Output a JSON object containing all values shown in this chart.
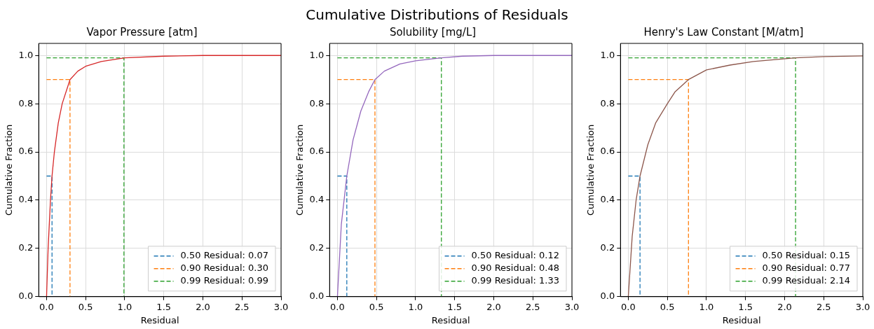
{
  "chart_data": [
    {
      "type": "line",
      "title": "Vapor Pressure [atm]",
      "xlabel": "Residual",
      "ylabel": "Cumulative Fraction",
      "annotations": [
        "Cumulative Distributions of Residuals"
      ],
      "xlim": [
        -0.1,
        3
      ],
      "ylim": [
        0,
        1.05
      ],
      "xticks": [
        {
          "value": 0,
          "label": "0.0"
        },
        {
          "value": 0.5,
          "label": "0.5"
        },
        {
          "value": 1,
          "label": "1.0"
        },
        {
          "value": 1.5,
          "label": "1.5"
        },
        {
          "value": 2,
          "label": "2.0"
        },
        {
          "value": 2.5,
          "label": "2.5"
        },
        {
          "value": 3,
          "label": "3.0"
        }
      ],
      "yticks": [
        {
          "value": 0,
          "label": "0.0"
        },
        {
          "value": 0.2,
          "label": "0.2"
        },
        {
          "value": 0.4,
          "label": "0.4"
        },
        {
          "value": 0.6,
          "label": "0.6"
        },
        {
          "value": 0.8,
          "label": "0.8"
        },
        {
          "value": 1,
          "label": "1.0"
        }
      ],
      "grid": true,
      "legend": "bottom right",
      "marker": "none",
      "line_style": "solid",
      "series": [
        {
          "color": "#d62728",
          "x": [
            0,
            0.02,
            0.05,
            0.07,
            0.1,
            0.15,
            0.2,
            0.3,
            0.4,
            0.5,
            0.7,
            1.0,
            1.5,
            2,
            3
          ],
          "values": [
            0,
            0.2,
            0.4,
            0.5,
            0.6,
            0.72,
            0.8,
            0.9,
            0.935,
            0.955,
            0.975,
            0.99,
            0.997,
            1,
            1
          ]
        },
        {
          "name": "0.50 Residual: 0.07",
          "color": "#1f77b4",
          "line_style": "dashed",
          "x": [
            0,
            0.07,
            0.07
          ],
          "values": [
            0.5,
            0.5,
            0
          ]
        },
        {
          "name": "0.90 Residual: 0.30",
          "color": "#ff7f0e",
          "line_style": "dashed",
          "x": [
            0,
            0.3,
            0.3
          ],
          "values": [
            0.9,
            0.9,
            0
          ]
        },
        {
          "name": "0.99 Residual: 0.99",
          "color": "#2ca02c",
          "line_style": "dashed",
          "x": [
            0,
            0.99,
            0.99
          ],
          "values": [
            0.99,
            0.99,
            0
          ]
        }
      ]
    },
    {
      "type": "line",
      "title": "Solubility [mg/L]",
      "xlabel": "Residual",
      "ylabel": "Cumulative Fraction",
      "xlim": [
        -0.1,
        3
      ],
      "ylim": [
        0,
        1.05
      ],
      "xticks": [
        {
          "value": 0,
          "label": "0.0"
        },
        {
          "value": 0.5,
          "label": "0.5"
        },
        {
          "value": 1,
          "label": "1.0"
        },
        {
          "value": 1.5,
          "label": "1.5"
        },
        {
          "value": 2,
          "label": "2.0"
        },
        {
          "value": 2.5,
          "label": "2.5"
        },
        {
          "value": 3,
          "label": "3.0"
        }
      ],
      "yticks": [
        {
          "value": 0,
          "label": "0.0"
        },
        {
          "value": 0.2,
          "label": "0.2"
        },
        {
          "value": 0.4,
          "label": "0.4"
        },
        {
          "value": 0.6,
          "label": "0.6"
        },
        {
          "value": 0.8,
          "label": "0.8"
        },
        {
          "value": 1,
          "label": "1.0"
        }
      ],
      "grid": true,
      "legend": "bottom right",
      "marker": "none",
      "line_style": "solid",
      "series": [
        {
          "color": "#9467bd",
          "x": [
            0,
            0.05,
            0.12,
            0.2,
            0.3,
            0.4,
            0.48,
            0.6,
            0.8,
            1.0,
            1.33,
            1.6,
            2,
            3
          ],
          "values": [
            0,
            0.3,
            0.5,
            0.65,
            0.77,
            0.85,
            0.9,
            0.935,
            0.965,
            0.978,
            0.99,
            0.997,
            1,
            1
          ]
        },
        {
          "name": "0.50 Residual: 0.12",
          "color": "#1f77b4",
          "line_style": "dashed",
          "x": [
            0,
            0.12,
            0.12
          ],
          "values": [
            0.5,
            0.5,
            0
          ]
        },
        {
          "name": "0.90 Residual: 0.48",
          "color": "#ff7f0e",
          "line_style": "dashed",
          "x": [
            0,
            0.48,
            0.48
          ],
          "values": [
            0.9,
            0.9,
            0
          ]
        },
        {
          "name": "0.99 Residual: 1.33",
          "color": "#2ca02c",
          "line_style": "dashed",
          "x": [
            0,
            1.33,
            1.33
          ],
          "values": [
            0.99,
            0.99,
            0
          ]
        }
      ]
    },
    {
      "type": "line",
      "title": "Henry's Law Constant [M/atm]",
      "xlabel": "Residual",
      "ylabel": "Cumulative Fraction",
      "xlim": [
        -0.1,
        3
      ],
      "ylim": [
        0,
        1.05
      ],
      "xticks": [
        {
          "value": 0,
          "label": "0.0"
        },
        {
          "value": 0.5,
          "label": "0.5"
        },
        {
          "value": 1,
          "label": "1.0"
        },
        {
          "value": 1.5,
          "label": "1.5"
        },
        {
          "value": 2,
          "label": "2.0"
        },
        {
          "value": 2.5,
          "label": "2.5"
        },
        {
          "value": 3,
          "label": "3.0"
        }
      ],
      "yticks": [
        {
          "value": 0,
          "label": "0.0"
        },
        {
          "value": 0.2,
          "label": "0.2"
        },
        {
          "value": 0.4,
          "label": "0.4"
        },
        {
          "value": 0.6,
          "label": "0.6"
        },
        {
          "value": 0.8,
          "label": "0.8"
        },
        {
          "value": 1,
          "label": "1.0"
        }
      ],
      "grid": true,
      "legend": "bottom right",
      "marker": "none",
      "line_style": "solid",
      "series": [
        {
          "color": "#8c564b",
          "x": [
            0,
            0.05,
            0.1,
            0.15,
            0.25,
            0.35,
            0.5,
            0.6,
            0.77,
            1.0,
            1.3,
            1.6,
            2.14,
            2.5,
            3
          ],
          "values": [
            0,
            0.25,
            0.4,
            0.5,
            0.63,
            0.72,
            0.8,
            0.85,
            0.9,
            0.94,
            0.96,
            0.975,
            0.99,
            0.995,
            0.998
          ]
        },
        {
          "name": "0.50 Residual: 0.15",
          "color": "#1f77b4",
          "line_style": "dashed",
          "x": [
            0,
            0.15,
            0.15
          ],
          "values": [
            0.5,
            0.5,
            0
          ]
        },
        {
          "name": "0.90 Residual: 0.77",
          "color": "#ff7f0e",
          "line_style": "dashed",
          "x": [
            0,
            0.77,
            0.77
          ],
          "values": [
            0.9,
            0.9,
            0
          ]
        },
        {
          "name": "0.99 Residual: 2.14",
          "color": "#2ca02c",
          "line_style": "dashed",
          "x": [
            0,
            2.14,
            2.14
          ],
          "values": [
            0.99,
            0.99,
            0
          ]
        }
      ]
    }
  ]
}
